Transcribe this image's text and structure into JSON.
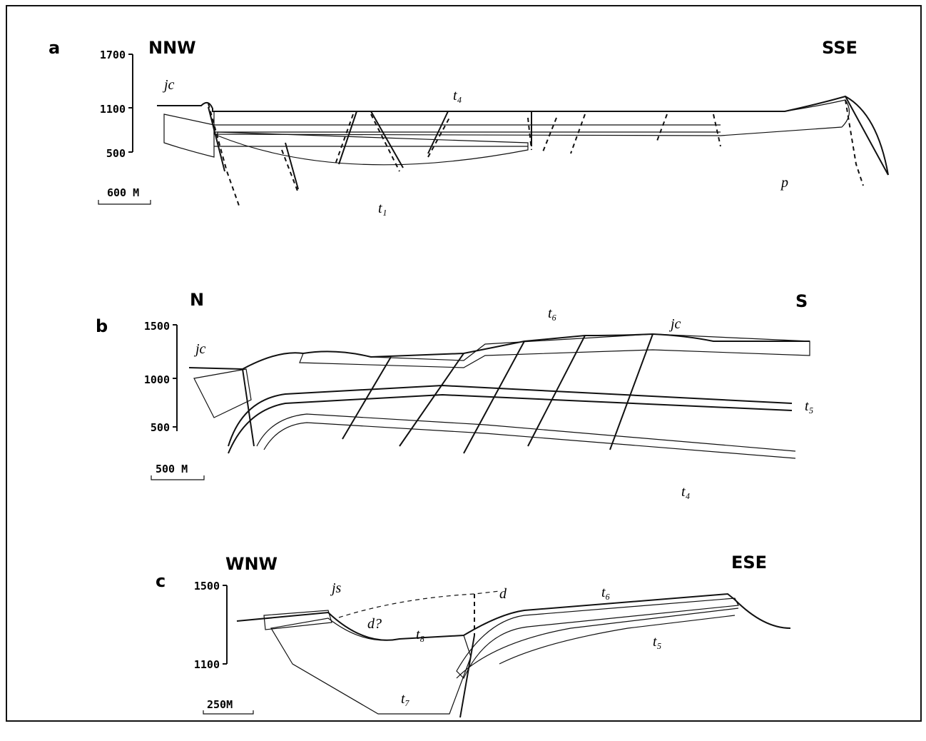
{
  "figure": {
    "panels": [
      {
        "letter": "a",
        "left": "NNW",
        "right": "SSE",
        "elevations": [
          "1700",
          "1100",
          "500"
        ],
        "scale": "600 M",
        "labels": [
          "jc",
          "t₄",
          "t₁",
          "p"
        ]
      },
      {
        "letter": "b",
        "left": "N",
        "right": "S",
        "elevations": [
          "1500",
          "1000",
          "500"
        ],
        "scale": "500 M",
        "labels": [
          "jc",
          "t₆",
          "jc",
          "t₅",
          "t₄"
        ]
      },
      {
        "letter": "c",
        "left": "WNW",
        "right": "ESE",
        "elevations": [
          "1500",
          "1100"
        ],
        "scale": "250M",
        "labels": [
          "js",
          "d",
          "d?",
          "t₈",
          "t₆",
          "t₅",
          "t₇"
        ]
      }
    ]
  }
}
